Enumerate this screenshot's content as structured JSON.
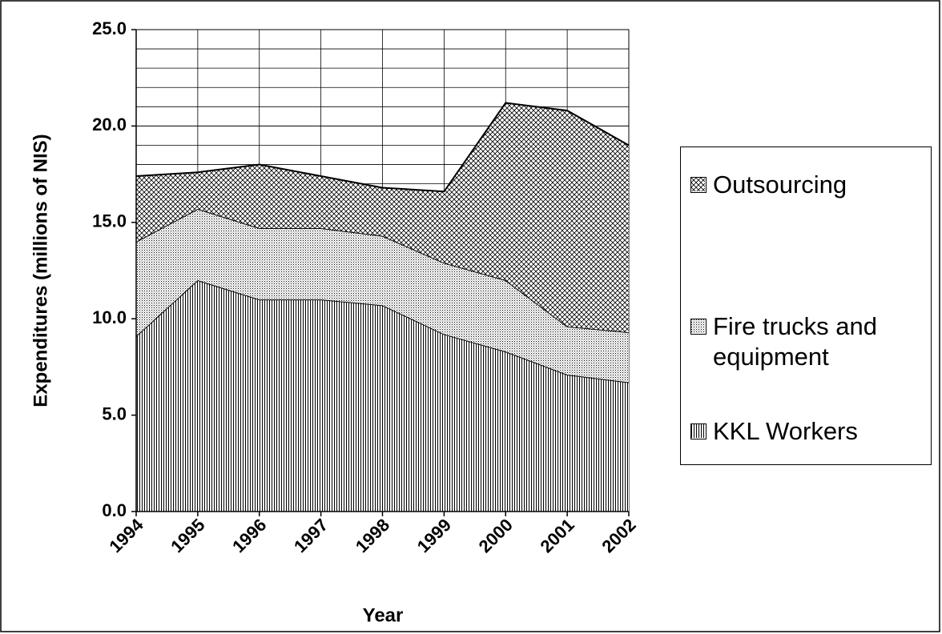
{
  "chart_data": {
    "type": "stacked_area",
    "y_label": "Expenditures (millions of NIS)",
    "x_label": "Year",
    "categories": [
      "1994",
      "1995",
      "1996",
      "1997",
      "1998",
      "1999",
      "2000",
      "2001",
      "2002"
    ],
    "series": [
      {
        "name": "KKL Workers",
        "color": "#000000",
        "pattern": "vertical",
        "values": [
          9.1,
          12.0,
          11.0,
          11.0,
          10.7,
          9.2,
          8.3,
          7.1,
          6.7
        ]
      },
      {
        "name": "Fire trucks and equipment",
        "color": "#000000",
        "pattern": "dots",
        "values": [
          4.9,
          3.7,
          3.7,
          3.7,
          3.6,
          3.7,
          3.7,
          2.5,
          2.6
        ]
      },
      {
        "name": "Outsourcing",
        "color": "#000000",
        "pattern": "crosshatch",
        "values": [
          3.4,
          1.9,
          3.3,
          2.7,
          2.5,
          3.7,
          9.2,
          11.2,
          9.7
        ]
      }
    ],
    "ylim": [
      0,
      25
    ],
    "yticks": [
      {
        "value": 0,
        "label": "0.0"
      },
      {
        "value": 5,
        "label": "5.0"
      },
      {
        "value": 10,
        "label": "10.0"
      },
      {
        "value": 15,
        "label": "15.0"
      },
      {
        "value": 20,
        "label": "20.0"
      },
      {
        "value": 25,
        "label": "25.0"
      }
    ],
    "minor_yticks": [
      1,
      2,
      3,
      4,
      6,
      7,
      8,
      9,
      11,
      12,
      13,
      14,
      16,
      17,
      18,
      19,
      21,
      22,
      23,
      24
    ],
    "grid": true,
    "legend": "right"
  }
}
